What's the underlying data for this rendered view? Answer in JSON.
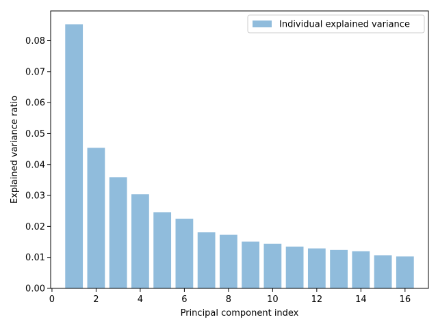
{
  "chart_data": {
    "type": "bar",
    "title": "",
    "xlabel": "Principal component index",
    "ylabel": "Explained variance ratio",
    "x": [
      1,
      2,
      3,
      4,
      5,
      6,
      7,
      8,
      9,
      10,
      11,
      12,
      13,
      14,
      15,
      16
    ],
    "series": [
      {
        "name": "Individual explained variance",
        "color": "#90bcdc",
        "values": [
          0.0853,
          0.0454,
          0.0359,
          0.0304,
          0.0246,
          0.0225,
          0.0181,
          0.0173,
          0.0151,
          0.0144,
          0.0135,
          0.0129,
          0.0124,
          0.012,
          0.0107,
          0.0103
        ]
      }
    ],
    "xlim": [
      -0.06,
      17.06
    ],
    "ylim": [
      0,
      0.0896
    ],
    "xticks": [
      0,
      2,
      4,
      6,
      8,
      10,
      12,
      14,
      16
    ],
    "xtick_labels": [
      "0",
      "2",
      "4",
      "6",
      "8",
      "10",
      "12",
      "14",
      "16"
    ],
    "yticks": [
      0.0,
      0.01,
      0.02,
      0.03,
      0.04,
      0.05,
      0.06,
      0.07,
      0.08
    ],
    "ytick_labels": [
      "0.00",
      "0.01",
      "0.02",
      "0.03",
      "0.04",
      "0.05",
      "0.06",
      "0.07",
      "0.08"
    ],
    "bar_width": 0.8,
    "grid": false,
    "legend_position": "top-right"
  }
}
